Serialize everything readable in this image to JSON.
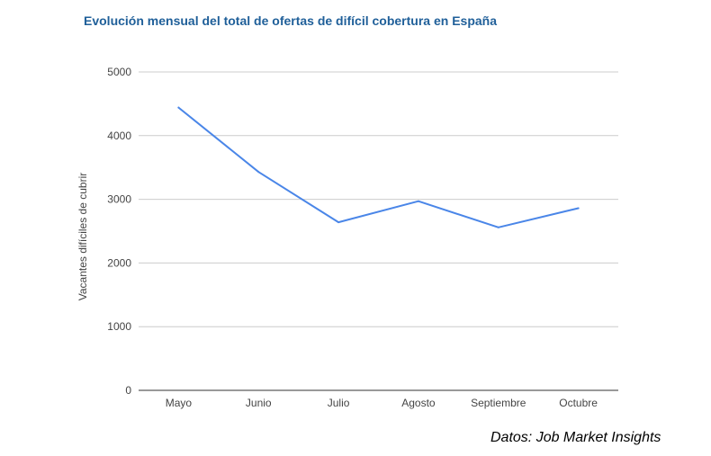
{
  "title": "Evolución mensual del total de ofertas de difícil cobertura en España",
  "source": "Datos: Job Market Insights",
  "colors": {
    "title": "#1f5f99",
    "series_line": "#4a86e8",
    "grid": "#cccccc",
    "axis": "#333333",
    "text": "#444444"
  },
  "chart_data": {
    "type": "line",
    "title": "Evolución mensual del total de ofertas de difícil cobertura en España",
    "xlabel": "",
    "ylabel": "Vacantes difíciles de cubrir",
    "categories": [
      "Mayo",
      "Junio",
      "Julio",
      "Agosto",
      "Septiembre",
      "Octubre"
    ],
    "series": [
      {
        "values": [
          4440,
          3430,
          2640,
          2970,
          2560,
          2860
        ]
      }
    ],
    "ylim": [
      0,
      5000
    ],
    "yticks": [
      0,
      1000,
      2000,
      3000,
      4000,
      5000
    ],
    "grid": true,
    "legend": "none"
  }
}
